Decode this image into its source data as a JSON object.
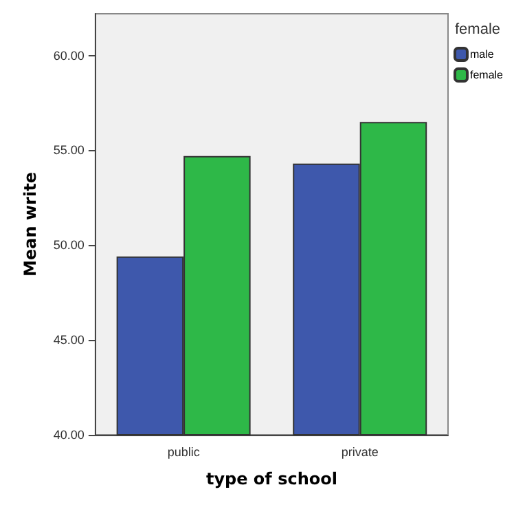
{
  "chart_data": {
    "type": "bar",
    "xlabel": "type of school",
    "ylabel": "Mean write",
    "legend_title": "female",
    "categories": [
      "public",
      "private"
    ],
    "series": [
      {
        "name": "male",
        "color": "#3e58ac",
        "values": [
          49.4,
          54.3
        ]
      },
      {
        "name": "female",
        "color": "#2eb848",
        "values": [
          54.7,
          56.5
        ]
      }
    ],
    "ylim": [
      40,
      62.2
    ],
    "yticks": [
      {
        "value": 40,
        "label": "40.00"
      },
      {
        "value": 45,
        "label": "45.00"
      },
      {
        "value": 50,
        "label": "50.00"
      },
      {
        "value": 55,
        "label": "55.00"
      },
      {
        "value": 60,
        "label": "60.00"
      }
    ],
    "grid": false,
    "legend": "top right"
  }
}
